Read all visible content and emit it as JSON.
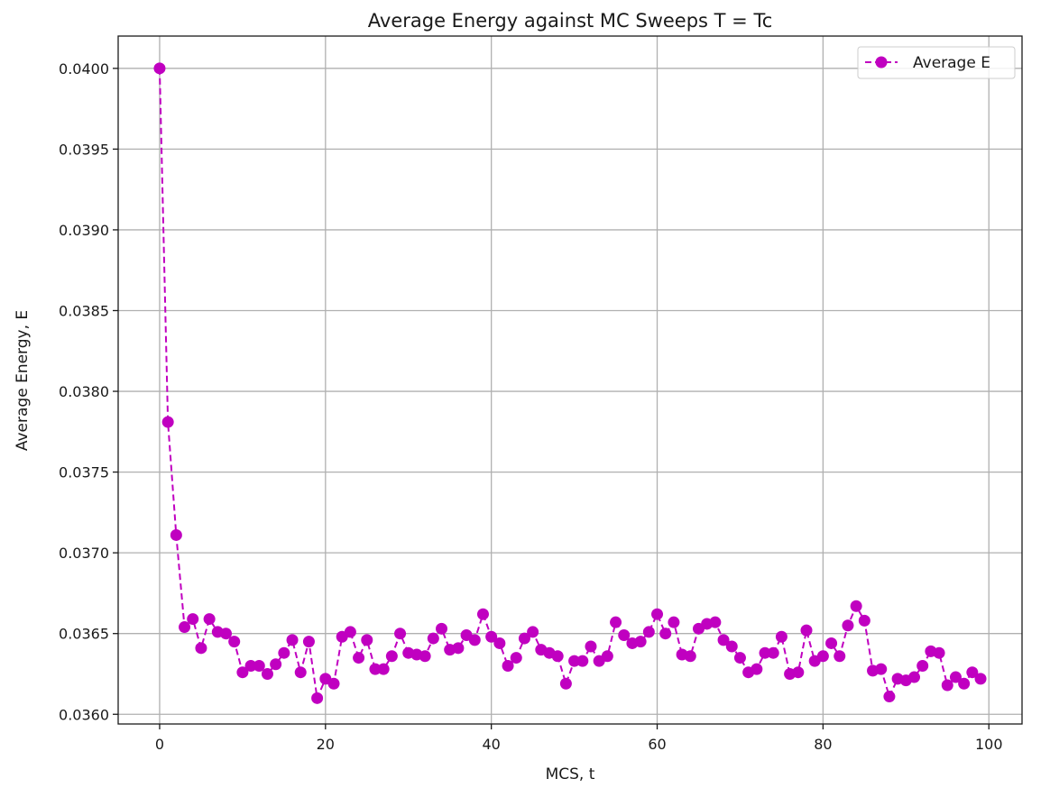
{
  "chart_data": {
    "type": "line",
    "title": "Average Energy against MC Sweeps T = Tc",
    "xlabel": "MCS, t",
    "ylabel": "Average Energy, E",
    "xlim": [
      -5,
      104
    ],
    "ylim": [
      0.03594,
      0.0402
    ],
    "xticks": [
      0,
      20,
      40,
      60,
      80,
      100
    ],
    "xtick_labels": [
      "0",
      "20",
      "40",
      "60",
      "80",
      "100"
    ],
    "yticks": [
      0.036,
      0.0365,
      0.037,
      0.0375,
      0.038,
      0.0385,
      0.039,
      0.0395,
      0.04
    ],
    "ytick_labels": [
      "0.0360",
      "0.0365",
      "0.0370",
      "0.0375",
      "0.0380",
      "0.0385",
      "0.0390",
      "0.0395",
      "0.0400"
    ],
    "grid": true,
    "legend_position": "top-right",
    "series": [
      {
        "name": "Average E",
        "color": "#c000c0",
        "line_style": "dashed",
        "marker": "circle",
        "x": [
          0,
          1,
          2,
          3,
          4,
          5,
          6,
          7,
          8,
          9,
          10,
          11,
          12,
          13,
          14,
          15,
          16,
          17,
          18,
          19,
          20,
          21,
          22,
          23,
          24,
          25,
          26,
          27,
          28,
          29,
          30,
          31,
          32,
          33,
          34,
          35,
          36,
          37,
          38,
          39,
          40,
          41,
          42,
          43,
          44,
          45,
          46,
          47,
          48,
          49,
          50,
          51,
          52,
          53,
          54,
          55,
          56,
          57,
          58,
          59,
          60,
          61,
          62,
          63,
          64,
          65,
          66,
          67,
          68,
          69,
          70,
          71,
          72,
          73,
          74,
          75,
          76,
          77,
          78,
          79,
          80,
          81,
          82,
          83,
          84,
          85,
          86,
          87,
          88,
          89,
          90,
          91,
          92,
          93,
          94,
          95,
          96,
          97,
          98,
          99
        ],
        "values": [
          0.04,
          0.03781,
          0.03711,
          0.03654,
          0.03659,
          0.03641,
          0.03659,
          0.03651,
          0.0365,
          0.03645,
          0.03626,
          0.0363,
          0.0363,
          0.03625,
          0.03631,
          0.03638,
          0.03646,
          0.03626,
          0.03645,
          0.0361,
          0.03622,
          0.03619,
          0.03648,
          0.03651,
          0.03635,
          0.03646,
          0.03628,
          0.03628,
          0.03636,
          0.0365,
          0.03638,
          0.03637,
          0.03636,
          0.03647,
          0.03653,
          0.0364,
          0.03641,
          0.03649,
          0.03646,
          0.03662,
          0.03648,
          0.03644,
          0.0363,
          0.03635,
          0.03647,
          0.03651,
          0.0364,
          0.03638,
          0.03636,
          0.03619,
          0.03633,
          0.03633,
          0.03642,
          0.03633,
          0.03636,
          0.03657,
          0.03649,
          0.03644,
          0.03645,
          0.03651,
          0.03662,
          0.0365,
          0.03657,
          0.03637,
          0.03636,
          0.03653,
          0.03656,
          0.03657,
          0.03646,
          0.03642,
          0.03635,
          0.03626,
          0.03628,
          0.03638,
          0.03638,
          0.03648,
          0.03625,
          0.03626,
          0.03652,
          0.03633,
          0.03636,
          0.03644,
          0.03636,
          0.03655,
          0.03667,
          0.03658,
          0.03627,
          0.03628,
          0.03611,
          0.03622,
          0.03621,
          0.03623,
          0.0363,
          0.03639,
          0.03638,
          0.03618,
          0.03623,
          0.03619,
          0.03626,
          0.03622
        ]
      }
    ]
  }
}
